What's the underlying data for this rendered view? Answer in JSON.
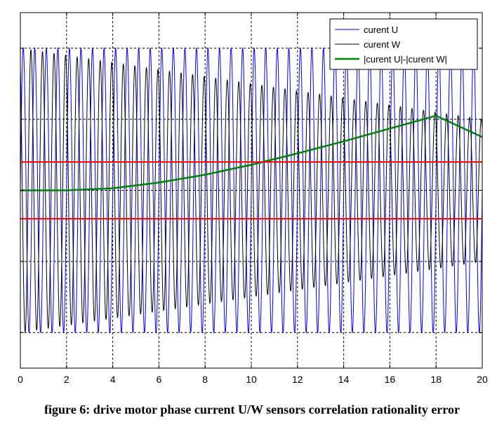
{
  "chart_data": {
    "type": "line",
    "xlabel": "",
    "ylabel": "",
    "xlim": [
      0,
      20
    ],
    "ylim": [
      -2.5,
      2.5
    ],
    "xticks": [
      0,
      2,
      4,
      6,
      8,
      10,
      12,
      14,
      16,
      18,
      20
    ],
    "xtick_labels": [
      "0",
      "2",
      "4",
      "6",
      "8",
      "10",
      "12",
      "14",
      "16",
      "18",
      "20"
    ],
    "yticks": [
      -2,
      -1,
      0,
      1,
      2
    ],
    "grid": true,
    "legend_position": "top-right",
    "series": [
      {
        "name": "curent U",
        "color": "#0000ff",
        "kind": "sine",
        "amplitude": 2,
        "cycles": 40,
        "phase_deg": 0,
        "x_range": [
          0,
          20
        ]
      },
      {
        "name": "curent W",
        "color": "#000000",
        "kind": "sine",
        "amplitude_start": 2,
        "amplitude_end": 1.0,
        "cycles": 40,
        "phase_deg": 120,
        "x_range": [
          0,
          20
        ]
      },
      {
        "name": "|curent U|-|curent W|",
        "color": "#008000",
        "x": [
          0,
          2,
          4,
          6,
          8,
          10,
          12,
          14,
          16,
          18,
          20
        ],
        "y": [
          0.0,
          0.0,
          0.03,
          0.11,
          0.22,
          0.36,
          0.52,
          0.69,
          0.87,
          1.05,
          0.75
        ]
      }
    ],
    "threshold_lines": [
      {
        "y": 0.4,
        "color": "#ff0000"
      },
      {
        "y": -0.4,
        "color": "#ff0000"
      }
    ]
  },
  "caption": "figure 6: drive motor phase current U/W sensors correlation rationality error"
}
